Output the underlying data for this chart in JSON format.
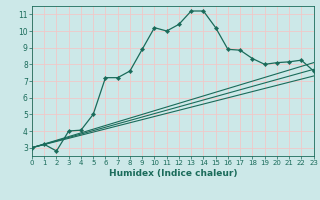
{
  "title": "",
  "xlabel": "Humidex (Indice chaleur)",
  "xlim": [
    0,
    23
  ],
  "ylim": [
    2.5,
    11.5
  ],
  "xticks": [
    0,
    1,
    2,
    3,
    4,
    5,
    6,
    7,
    8,
    9,
    10,
    11,
    12,
    13,
    14,
    15,
    16,
    17,
    18,
    19,
    20,
    21,
    22,
    23
  ],
  "yticks": [
    3,
    4,
    5,
    6,
    7,
    8,
    9,
    10,
    11
  ],
  "bg_color": "#cce8e8",
  "grid_color": "#f0c8c8",
  "line_color": "#1a6b5a",
  "line1_x": [
    0,
    1,
    2,
    3,
    4,
    5,
    6,
    7,
    8,
    9,
    10,
    11,
    12,
    13,
    14,
    15,
    16,
    17,
    18,
    19,
    20,
    21,
    22,
    23
  ],
  "line1_y": [
    3.0,
    3.2,
    2.8,
    4.0,
    4.05,
    5.0,
    7.2,
    7.2,
    7.6,
    8.9,
    10.2,
    10.0,
    10.4,
    11.2,
    11.2,
    10.2,
    8.9,
    8.85,
    8.35,
    8.0,
    8.1,
    8.15,
    8.25,
    7.6
  ],
  "line2_x": [
    0,
    23
  ],
  "line2_y": [
    3.0,
    7.7
  ],
  "line3_x": [
    0,
    23
  ],
  "line3_y": [
    3.0,
    7.3
  ],
  "line4_x": [
    0,
    23
  ],
  "line4_y": [
    3.0,
    8.1
  ]
}
